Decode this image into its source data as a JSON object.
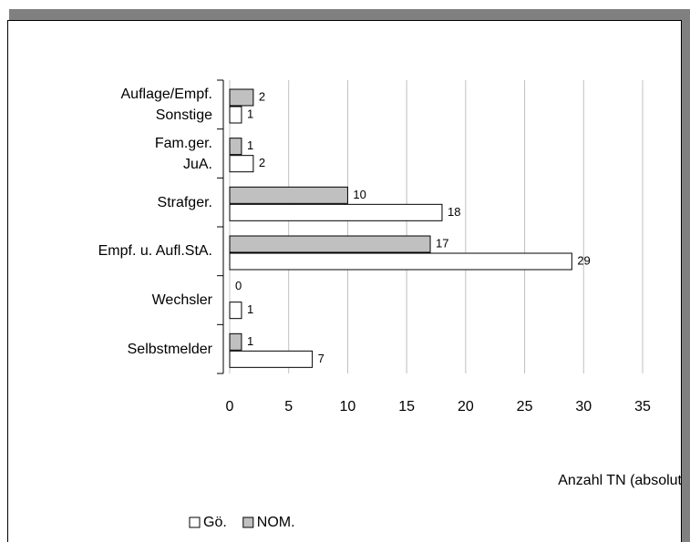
{
  "chart_data": {
    "type": "bar",
    "orientation": "horizontal",
    "categories": [
      "Auflage/Empf.\nSonstige",
      "Fam.ger.\nJuA.",
      "Strafger.",
      "Empf. u. Aufl.StA.",
      "Wechsler",
      "Selbstmelder"
    ],
    "series": [
      {
        "name": "Gö.",
        "color": "#ffffff",
        "values": [
          1,
          2,
          18,
          29,
          1,
          7
        ]
      },
      {
        "name": "NOM.",
        "color": "#c0c0c0",
        "values": [
          2,
          1,
          10,
          17,
          0,
          1
        ]
      }
    ],
    "xlim": [
      0,
      35
    ],
    "xticks": [
      0,
      5,
      10,
      15,
      20,
      25,
      30,
      35
    ],
    "xlabel": "Anzahl TN (absolut",
    "grid": true,
    "legend": "bottom"
  }
}
